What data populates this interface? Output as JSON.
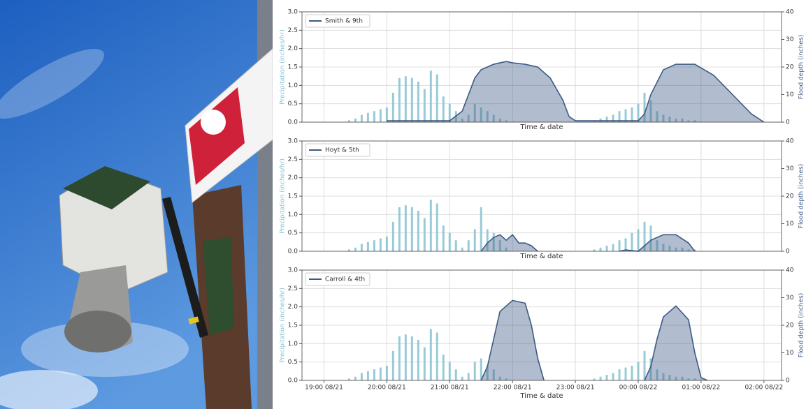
{
  "chart_data": [
    {
      "type": "combo",
      "xlabel": "Time & date",
      "ylabel": "Precipitation (inches/hr)",
      "y2label": "Flood depth (inches)",
      "xlim": [
        18.65,
        26.28
      ],
      "xticks": [
        19,
        20,
        21,
        22,
        23,
        24,
        25,
        26
      ],
      "ylim": [
        0,
        3
      ],
      "yticks": [
        {
          "value": 0,
          "label": "0.0"
        },
        {
          "value": 0.5,
          "label": "0.5"
        },
        {
          "value": 1,
          "label": "1.0"
        },
        {
          "value": 1.5,
          "label": "1.5"
        },
        {
          "value": 2,
          "label": "2.0"
        },
        {
          "value": 2.5,
          "label": "2.5"
        },
        {
          "value": 3,
          "label": "3.0"
        }
      ],
      "y2lim": [
        0,
        40
      ],
      "y2ticks": [
        0,
        10,
        20,
        30,
        40
      ],
      "grid": true,
      "legend": "upper left",
      "precipitation": {
        "color": "#86c2d0",
        "x": [
          19.4,
          19.5,
          19.6,
          19.7,
          19.8,
          19.9,
          20.0,
          20.1,
          20.2,
          20.3,
          20.4,
          20.5,
          20.6,
          20.7,
          20.8,
          20.9,
          21.0,
          21.1,
          21.2,
          21.3,
          21.4,
          21.5,
          21.6,
          21.7,
          21.8,
          21.9,
          23.3,
          23.4,
          23.5,
          23.6,
          23.7,
          23.8,
          23.9,
          24.0,
          24.1,
          24.2,
          24.3,
          24.4,
          24.5,
          24.6,
          24.7,
          24.8,
          24.9
        ],
        "values": [
          0.05,
          0.1,
          0.2,
          0.25,
          0.3,
          0.35,
          0.4,
          0.8,
          1.2,
          1.25,
          1.2,
          1.1,
          0.9,
          1.4,
          1.3,
          0.7,
          0.5,
          0.3,
          0.1,
          0.2,
          0.5,
          0.4,
          0.3,
          0.2,
          0.1,
          0.05,
          0.05,
          0.1,
          0.15,
          0.2,
          0.3,
          0.35,
          0.4,
          0.5,
          0.8,
          0.6,
          0.3,
          0.2,
          0.15,
          0.1,
          0.1,
          0.05,
          0.05
        ]
      },
      "series": [
        {
          "name": "Smith & 9th",
          "color": "#3b5a85",
          "axis": "y2",
          "x": [
            20.0,
            20.5,
            21.0,
            21.2,
            21.3,
            21.4,
            21.5,
            21.7,
            21.9,
            22.0,
            22.2,
            22.4,
            22.6,
            22.8,
            22.9,
            23.0,
            23.5,
            24.0,
            24.1,
            24.2,
            24.4,
            24.6,
            24.9,
            25.2,
            25.5,
            25.8,
            26.0
          ],
          "values": [
            0.5,
            0.5,
            0.5,
            4,
            10,
            16,
            19,
            21,
            22,
            21.5,
            21,
            20,
            16,
            8,
            2,
            0.5,
            0.5,
            0.5,
            3,
            10,
            19,
            21,
            21,
            17,
            10,
            3,
            0
          ]
        }
      ]
    },
    {
      "type": "combo",
      "xlabel": "Time & date",
      "ylabel": "Precipitation (inches/hr)",
      "y2label": "Flood depth (inches)",
      "xlim": [
        18.65,
        26.28
      ],
      "xticks": [
        19,
        20,
        21,
        22,
        23,
        24,
        25,
        26
      ],
      "ylim": [
        0,
        3
      ],
      "yticks": [
        {
          "value": 0,
          "label": "0.0"
        },
        {
          "value": 0.5,
          "label": "0.5"
        },
        {
          "value": 1,
          "label": "1.0"
        },
        {
          "value": 1.5,
          "label": "1.5"
        },
        {
          "value": 2,
          "label": "2.0"
        },
        {
          "value": 2.5,
          "label": "2.5"
        },
        {
          "value": 3,
          "label": "3.0"
        }
      ],
      "y2lim": [
        0,
        40
      ],
      "y2ticks": [
        0,
        10,
        20,
        30,
        40
      ],
      "grid": true,
      "legend": "upper left",
      "precipitation": {
        "color": "#86c2d0",
        "x": [
          19.4,
          19.5,
          19.6,
          19.7,
          19.8,
          19.9,
          20.0,
          20.1,
          20.2,
          20.3,
          20.4,
          20.5,
          20.6,
          20.7,
          20.8,
          20.9,
          21.0,
          21.1,
          21.2,
          21.3,
          21.4,
          21.5,
          21.6,
          21.7,
          21.8,
          21.9,
          23.3,
          23.4,
          23.5,
          23.6,
          23.7,
          23.8,
          23.9,
          24.0,
          24.1,
          24.2,
          24.3,
          24.4,
          24.5,
          24.6,
          24.7,
          24.8,
          24.9
        ],
        "values": [
          0.05,
          0.1,
          0.2,
          0.25,
          0.3,
          0.35,
          0.4,
          0.8,
          1.2,
          1.25,
          1.2,
          1.1,
          0.9,
          1.4,
          1.3,
          0.7,
          0.5,
          0.3,
          0.1,
          0.3,
          0.6,
          1.2,
          0.6,
          0.5,
          0.3,
          0.1,
          0.05,
          0.1,
          0.15,
          0.2,
          0.3,
          0.35,
          0.5,
          0.6,
          0.8,
          0.7,
          0.3,
          0.2,
          0.15,
          0.1,
          0.1,
          0.05,
          0.05
        ]
      },
      "series": [
        {
          "name": "Hoyt & 5th",
          "color": "#3b5a85",
          "axis": "y2",
          "x": [
            21.5,
            21.6,
            21.7,
            21.8,
            21.9,
            22.0,
            22.1,
            22.2,
            22.3,
            22.4,
            23.0,
            23.7,
            23.8,
            24.0,
            24.2,
            24.4,
            24.6,
            24.8,
            24.9
          ],
          "values": [
            0,
            3,
            5,
            6,
            4,
            6,
            3,
            3,
            2,
            0,
            null,
            0,
            0.5,
            0,
            4,
            6,
            6,
            3,
            0
          ]
        }
      ]
    },
    {
      "type": "combo",
      "xlabel": "Time & date",
      "ylabel": "Precipitation (inches/hr)",
      "y2label": "Flood depth (inches)",
      "xlim": [
        18.65,
        26.28
      ],
      "xticks": [
        {
          "value": 19,
          "label": "19:00 08/21"
        },
        {
          "value": 20,
          "label": "20:00 08/21"
        },
        {
          "value": 21,
          "label": "21:00 08/21"
        },
        {
          "value": 22,
          "label": "22:00 08/21"
        },
        {
          "value": 23,
          "label": "23:00 08/21"
        },
        {
          "value": 24,
          "label": "00:00 08/22"
        },
        {
          "value": 25,
          "label": "01:00 08/22"
        },
        {
          "value": 26,
          "label": "02:00 08/22"
        }
      ],
      "ylim": [
        0,
        3
      ],
      "yticks": [
        {
          "value": 0,
          "label": "0.0"
        },
        {
          "value": 0.5,
          "label": "0.5"
        },
        {
          "value": 1,
          "label": "1.0"
        },
        {
          "value": 1.5,
          "label": "1.5"
        },
        {
          "value": 2,
          "label": "2.0"
        },
        {
          "value": 2.5,
          "label": "2.5"
        },
        {
          "value": 3,
          "label": "3.0"
        }
      ],
      "y2lim": [
        0,
        40
      ],
      "y2ticks": [
        0,
        10,
        20,
        30,
        40
      ],
      "grid": true,
      "legend": "upper left",
      "precipitation": {
        "color": "#86c2d0",
        "x": [
          19.4,
          19.5,
          19.6,
          19.7,
          19.8,
          19.9,
          20.0,
          20.1,
          20.2,
          20.3,
          20.4,
          20.5,
          20.6,
          20.7,
          20.8,
          20.9,
          21.0,
          21.1,
          21.2,
          21.3,
          21.4,
          21.5,
          21.6,
          21.7,
          21.8,
          21.9,
          23.3,
          23.4,
          23.5,
          23.6,
          23.7,
          23.8,
          23.9,
          24.0,
          24.1,
          24.2,
          24.3,
          24.4,
          24.5,
          24.6,
          24.7,
          24.8,
          24.9
        ],
        "values": [
          0.05,
          0.1,
          0.2,
          0.25,
          0.3,
          0.35,
          0.4,
          0.8,
          1.2,
          1.25,
          1.2,
          1.1,
          0.9,
          1.4,
          1.3,
          0.7,
          0.5,
          0.3,
          0.1,
          0.2,
          0.5,
          0.6,
          0.4,
          0.3,
          0.1,
          0.05,
          0.05,
          0.1,
          0.15,
          0.2,
          0.3,
          0.35,
          0.4,
          0.5,
          0.8,
          0.6,
          0.3,
          0.2,
          0.15,
          0.1,
          0.1,
          0.05,
          0.05
        ]
      },
      "series": [
        {
          "name": "Carroll & 4th",
          "color": "#3b5a85",
          "axis": "y2",
          "x": [
            21.5,
            21.6,
            21.7,
            21.8,
            22.0,
            22.2,
            22.3,
            22.4,
            22.5,
            23.0,
            24.1,
            24.2,
            24.3,
            24.4,
            24.6,
            24.8,
            24.9,
            25.0,
            25.1
          ],
          "values": [
            0,
            5,
            15,
            25,
            29,
            28,
            20,
            8,
            0,
            null,
            0,
            5,
            15,
            23,
            27,
            22,
            10,
            1,
            0
          ]
        }
      ]
    }
  ]
}
